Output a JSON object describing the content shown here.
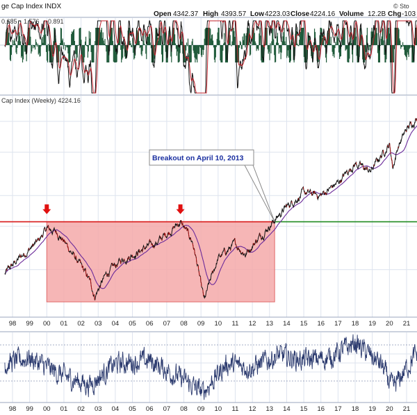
{
  "header": {
    "symbol_title": "ge Cap Index  INDX",
    "open_label": "Open",
    "open_value": "4342.37",
    "high_label": "High",
    "high_value": "4393.57",
    "low_label": "Low",
    "low_value": "4223.03",
    "close_label": "Close",
    "close_value": "4224.16",
    "volume_label": "Volume",
    "volume_value": "12.2B",
    "chg_label": "Chg",
    "chg_value": "-103"
  },
  "watermark": "© Sto",
  "macd_label": {
    "value1": "0.685",
    "value2": "1.576",
    "value3": "-0.891"
  },
  "price_label": "Cap Index (Weekly) 4224.16",
  "annotation": "Breakout on April 10, 2013",
  "colors": {
    "price_line": "#111111",
    "price_down": "#b01010",
    "ma_line": "#6b2a9a",
    "resistance_red": "#d81818",
    "breakout_green": "#1f8a1f",
    "box_fill": "#f4a9a9",
    "box_stroke": "#e06a6a",
    "arrow_red": "#e01010",
    "histogram": "#1f5a3a",
    "rsi_line": "#2b3a6e",
    "grid": "#dde3ee"
  },
  "chart_data": [
    {
      "type": "line",
      "panel": "macd",
      "series": [
        {
          "name": "0.685",
          "values": []
        },
        {
          "name": "1.576",
          "values": []
        },
        {
          "name": "-0.891",
          "values": []
        }
      ]
    },
    {
      "type": "line",
      "panel": "price",
      "title": "Cap Index (Weekly) 4224.16",
      "x": [
        1997.5,
        1998.5,
        1999.5,
        2000.0,
        2000.6,
        2001.5,
        2002.5,
        2002.8,
        2003.5,
        2004.5,
        2005.5,
        2006.5,
        2007.5,
        2007.8,
        2008.5,
        2009.0,
        2009.2,
        2010.0,
        2011.0,
        2011.6,
        2012.5,
        2013.3,
        2014.0,
        2015.0,
        2016.0,
        2017.0,
        2018.0,
        2018.9,
        2019.5,
        2020.0,
        2020.2,
        2020.5,
        2021.0,
        2021.9
      ],
      "values": [
        950,
        1130,
        1300,
        1469,
        1420,
        1160,
        900,
        780,
        960,
        1110,
        1200,
        1300,
        1500,
        1560,
        1300,
        860,
        740,
        1110,
        1270,
        1160,
        1380,
        1590,
        1800,
        2050,
        2000,
        2250,
        2700,
        2500,
        2900,
        3230,
        2600,
        3150,
        3700,
        4350
      ],
      "breakout_date": "April 10, 2013",
      "resistance_level": 1565,
      "base_box": {
        "x_start": 2000.0,
        "x_end": 2013.3,
        "y_low": 740,
        "y_high": 1565
      },
      "arrows_at": [
        2000.0,
        2007.8
      ],
      "ylim": [
        650,
        4700
      ]
    },
    {
      "type": "line",
      "panel": "rsi",
      "x": [
        1997.5,
        1999.0,
        2001.0,
        2002.5,
        2004.0,
        2006.0,
        2008.0,
        2009.1,
        2010.5,
        2012.0,
        2013.5,
        2015.0,
        2016.5,
        2018.0,
        2019.5,
        2020.2,
        2021.5
      ],
      "values": [
        55,
        60,
        45,
        38,
        55,
        58,
        42,
        32,
        55,
        52,
        62,
        58,
        60,
        72,
        55,
        35,
        62
      ],
      "ylim": [
        25,
        80
      ]
    }
  ],
  "x_axis_labels": [
    "98",
    "99",
    "00",
    "01",
    "02",
    "03",
    "04",
    "05",
    "06",
    "07",
    "08",
    "09",
    "10",
    "11",
    "12",
    "13",
    "14",
    "15",
    "16",
    "17",
    "18",
    "19",
    "20",
    "21"
  ]
}
